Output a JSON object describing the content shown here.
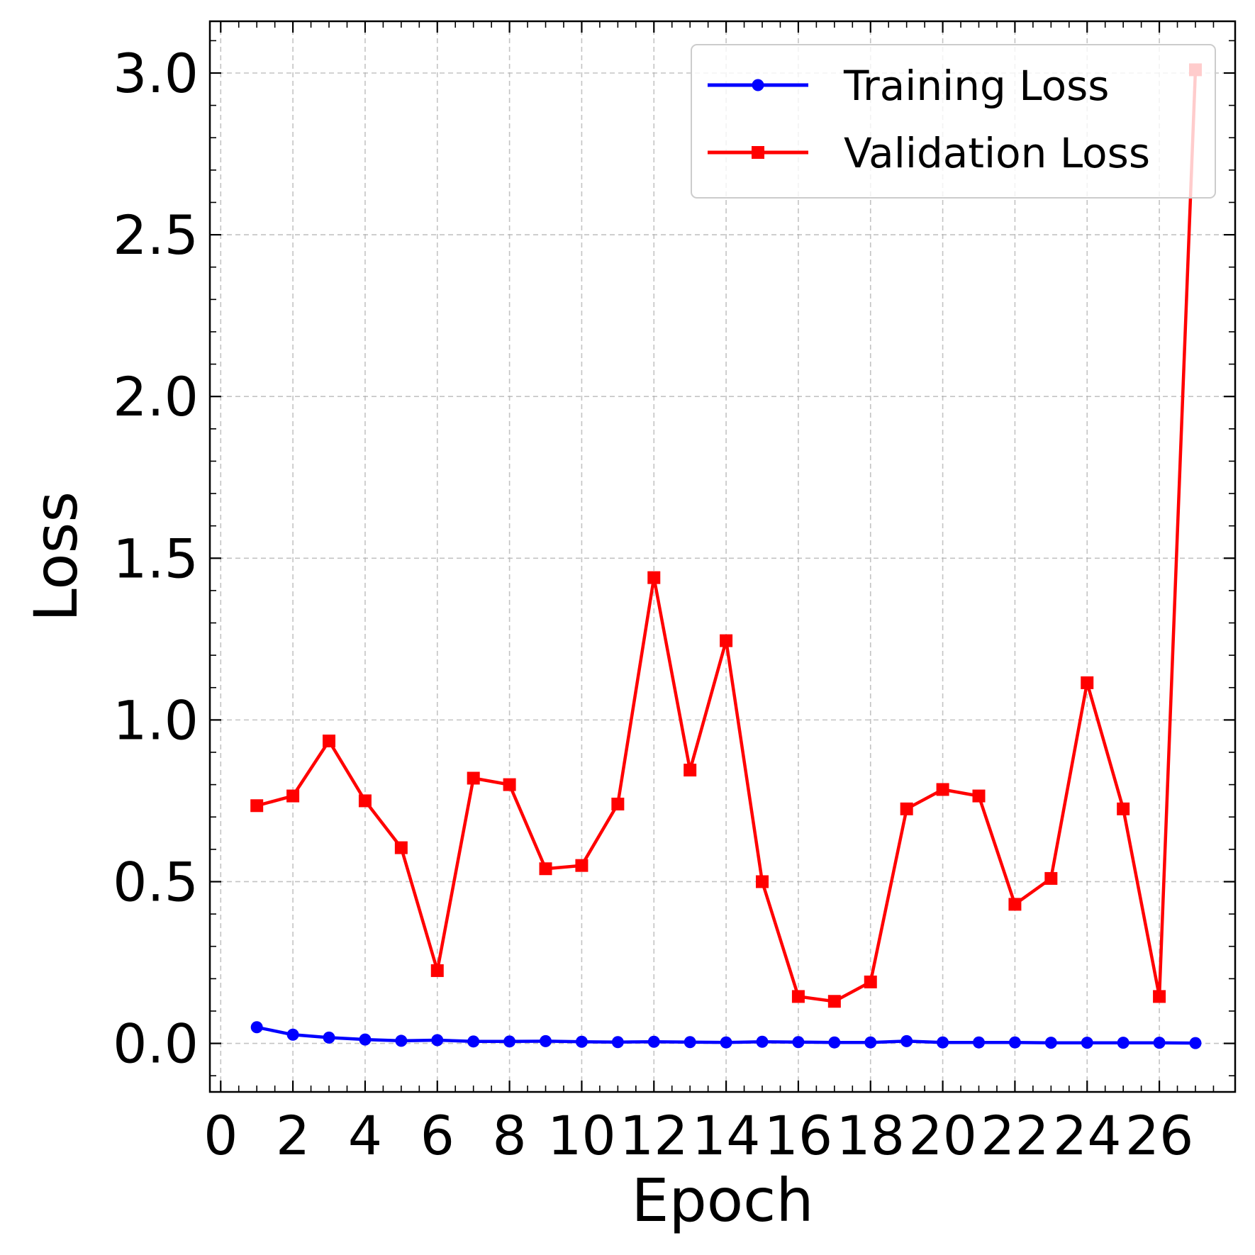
{
  "chart_data": {
    "type": "line",
    "xlabel": "Epoch",
    "ylabel": "Loss",
    "xlim": [
      -0.3,
      28.1
    ],
    "ylim": [
      -0.15,
      3.16
    ],
    "x_ticks": [
      0,
      2,
      4,
      6,
      8,
      10,
      12,
      14,
      16,
      18,
      20,
      22,
      24,
      26
    ],
    "y_ticks": [
      0.0,
      0.5,
      1.0,
      1.5,
      2.0,
      2.5,
      3.0
    ],
    "y_tick_labels": [
      "0.0",
      "0.5",
      "1.0",
      "1.5",
      "2.0",
      "2.5",
      "3.0"
    ],
    "grid": true,
    "legend_position": "top-right",
    "x": [
      1,
      2,
      3,
      4,
      5,
      6,
      7,
      8,
      9,
      10,
      11,
      12,
      13,
      14,
      15,
      16,
      17,
      18,
      19,
      20,
      21,
      22,
      23,
      24,
      25,
      26,
      27
    ],
    "series": [
      {
        "name": "Training Loss",
        "color": "#0000ff",
        "marker": "circle",
        "values": [
          0.05,
          0.027,
          0.018,
          0.012,
          0.008,
          0.01,
          0.006,
          0.006,
          0.007,
          0.005,
          0.004,
          0.005,
          0.004,
          0.003,
          0.005,
          0.004,
          0.003,
          0.003,
          0.007,
          0.003,
          0.003,
          0.003,
          0.002,
          0.002,
          0.002,
          0.002,
          0.001
        ]
      },
      {
        "name": "Validation Loss",
        "color": "#ff0000",
        "marker": "square",
        "values": [
          0.735,
          0.765,
          0.935,
          0.75,
          0.605,
          0.225,
          0.82,
          0.8,
          0.54,
          0.55,
          0.74,
          1.44,
          0.845,
          1.245,
          0.5,
          0.145,
          0.13,
          0.19,
          0.725,
          0.785,
          0.765,
          0.43,
          0.51,
          1.115,
          0.725,
          0.145,
          3.01
        ]
      }
    ]
  }
}
